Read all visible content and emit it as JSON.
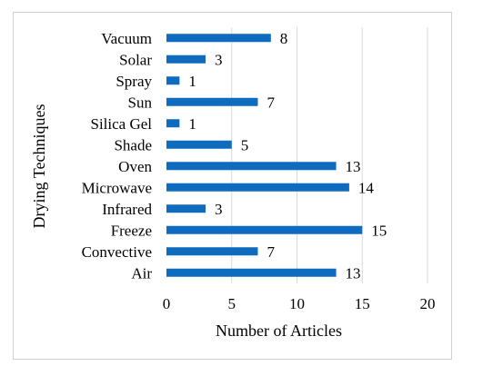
{
  "chart_data": {
    "type": "bar",
    "orientation": "horizontal",
    "categories": [
      "Vacuum",
      "Solar",
      "Spray",
      "Sun",
      "Silica Gel",
      "Shade",
      "Oven",
      "Microwave",
      "Infrared",
      "Freeze",
      "Convective",
      "Air"
    ],
    "values": [
      8,
      3,
      1,
      7,
      1,
      5,
      13,
      14,
      3,
      15,
      7,
      13
    ],
    "xlabel": "Number of Articles",
    "ylabel": "Drying Techniques",
    "xlim": [
      0,
      20
    ],
    "xticks": [
      0,
      5,
      10,
      15,
      20
    ],
    "grid": "vertical",
    "data_labels": true,
    "colors": {
      "bar": "#0f6bbd",
      "grid": "#d9d9d9"
    }
  }
}
